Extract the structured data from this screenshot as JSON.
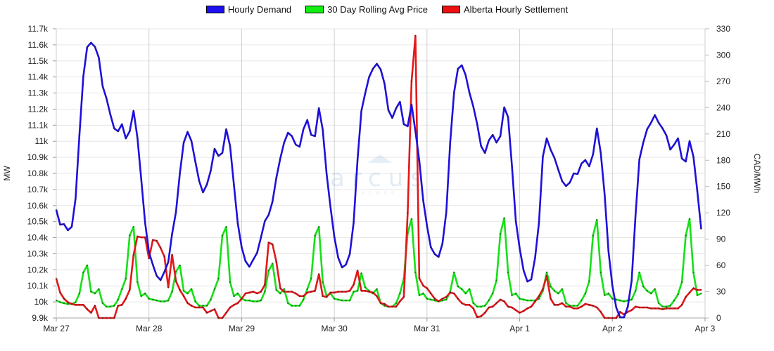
{
  "chart_data": {
    "type": "line",
    "title": "",
    "legend_position": "top-center",
    "grid": true,
    "x_tick_labels": [
      "Mar 27",
      "Mar 28",
      "Mar 29",
      "Mar 30",
      "Mar 31",
      "Apr 1",
      "Apr 2",
      "Apr 3"
    ],
    "x_unit": "hours since Mar 27 00:00",
    "y_left": {
      "label": "MW",
      "range": [
        9900,
        11700
      ],
      "step": 100,
      "tick_labels": [
        "9.9k",
        "10k",
        "10.1k",
        "10.2k",
        "10.3k",
        "10.4k",
        "10.5k",
        "10.6k",
        "10.7k",
        "10.8k",
        "10.9k",
        "11k",
        "11.1k",
        "11.2k",
        "11.3k",
        "11.4k",
        "11.5k",
        "11.6k",
        "11.7k"
      ]
    },
    "y_right": {
      "label": "CAD/MWh",
      "range": [
        0,
        330
      ],
      "step": 30,
      "tick_labels": [
        "0",
        "30",
        "60",
        "90",
        "120",
        "150",
        "180",
        "210",
        "240",
        "270",
        "300",
        "330"
      ]
    },
    "series": [
      {
        "name": "Hourly Demand",
        "axis": "left",
        "color": "#1e10dc",
        "values": [
          10573,
          10481,
          10484,
          10446,
          10468,
          10643,
          11040,
          11403,
          11586,
          11613,
          11588,
          11521,
          11342,
          11267,
          11167,
          11080,
          11062,
          11106,
          11018,
          11062,
          11189,
          11023,
          10765,
          10494,
          10310,
          10232,
          10162,
          10136,
          10188,
          10249,
          10424,
          10560,
          10800,
          10992,
          11058,
          11001,
          10874,
          10752,
          10682,
          10730,
          10817,
          10953,
          10909,
          10927,
          11075,
          10970,
          10726,
          10490,
          10341,
          10254,
          10219,
          10263,
          10306,
          10402,
          10503,
          10542,
          10625,
          10774,
          10892,
          10992,
          11053,
          11032,
          10979,
          10966,
          11075,
          11132,
          11040,
          11032,
          11206,
          11071,
          10796,
          10590,
          10407,
          10276,
          10215,
          10232,
          10298,
          10494,
          10883,
          11189,
          11298,
          11399,
          11451,
          11482,
          11447,
          11359,
          11193,
          11145,
          11206,
          11245,
          11106,
          11093,
          11228,
          11062,
          10879,
          10634,
          10472,
          10341,
          10298,
          10280,
          10363,
          10560,
          10992,
          11302,
          11451,
          11473,
          11412,
          11302,
          11215,
          11106,
          10970,
          10927,
          11005,
          11040,
          10992,
          11032,
          11211,
          11150,
          10844,
          10503,
          10332,
          10197,
          10127,
          10140,
          10276,
          10494,
          10905,
          11018,
          10948,
          10896,
          10822,
          10752,
          10721,
          10743,
          10800,
          10796,
          10861,
          10883,
          10844,
          10918,
          11080,
          10927,
          10669,
          10315,
          10101,
          9965,
          9904,
          9904,
          9970,
          10132,
          10538,
          10887,
          10992,
          11075,
          11115,
          11163,
          11115,
          11080,
          11036,
          10948,
          10979,
          11018,
          10892,
          10874,
          11001,
          10905,
          10690,
          10455
        ]
      },
      {
        "name": "30 Day Rolling Avg Price",
        "axis": "right",
        "color": "#17e017",
        "values": [
          20,
          18,
          17,
          16,
          16,
          18,
          28,
          52,
          60,
          30,
          28,
          33,
          17,
          13,
          13,
          14,
          21,
          33,
          45,
          94,
          104,
          41,
          25,
          28,
          22,
          21,
          20,
          19,
          19,
          20,
          30,
          53,
          60,
          31,
          28,
          33,
          19,
          14,
          14,
          14,
          21,
          33,
          45,
          94,
          104,
          41,
          25,
          28,
          22,
          20,
          20,
          19,
          19,
          20,
          30,
          54,
          62,
          32,
          28,
          33,
          17,
          14,
          14,
          14,
          21,
          33,
          45,
          94,
          104,
          41,
          25,
          28,
          22,
          21,
          20,
          20,
          20,
          30,
          31,
          51,
          35,
          31,
          28,
          33,
          17,
          14,
          13,
          13,
          17,
          28,
          45,
          97,
          113,
          52,
          26,
          28,
          22,
          21,
          20,
          19,
          20,
          21,
          30,
          52,
          36,
          33,
          28,
          33,
          17,
          13,
          13,
          14,
          20,
          28,
          43,
          96,
          114,
          52,
          26,
          28,
          22,
          21,
          20,
          20,
          20,
          22,
          31,
          52,
          36,
          31,
          28,
          33,
          17,
          14,
          14,
          14,
          20,
          28,
          42,
          94,
          112,
          52,
          26,
          28,
          22,
          21,
          20,
          19,
          20,
          21,
          31,
          52,
          36,
          31,
          28,
          33,
          17,
          13,
          13,
          14,
          20,
          27,
          41,
          94,
          113,
          52,
          26,
          28
        ]
      },
      {
        "name": "Alberta Hourly Settlement",
        "axis": "right",
        "color": "#e3181a",
        "values": [
          45,
          29,
          22,
          18,
          16,
          15,
          15,
          15,
          10,
          6,
          14,
          0,
          0,
          0,
          0,
          0,
          14,
          15,
          22,
          32,
          72,
          93,
          92,
          92,
          68,
          89,
          88,
          80,
          70,
          35,
          72,
          42,
          32,
          25,
          17,
          14,
          12,
          12,
          12,
          6,
          8,
          10,
          0,
          0,
          6,
          12,
          15,
          17,
          22,
          28,
          29,
          30,
          28,
          30,
          38,
          86,
          84,
          64,
          34,
          30,
          30,
          30,
          28,
          25,
          25,
          29,
          30,
          31,
          50,
          25,
          24,
          29,
          29,
          30,
          30,
          30,
          31,
          38,
          54,
          31,
          31,
          30,
          29,
          25,
          17,
          16,
          13,
          13,
          13,
          19,
          24,
          120,
          270,
          322,
          45,
          37,
          34,
          28,
          22,
          19,
          22,
          24,
          29,
          28,
          22,
          17,
          15,
          15,
          11,
          1,
          2,
          6,
          12,
          13,
          17,
          21,
          19,
          13,
          12,
          9,
          6,
          8,
          11,
          13,
          19,
          25,
          33,
          48,
          22,
          15,
          15,
          17,
          13,
          13,
          11,
          11,
          13,
          16,
          15,
          14,
          12,
          7,
          0,
          0,
          0,
          0,
          7,
          4,
          7,
          9,
          13,
          12,
          12,
          12,
          11,
          11,
          11,
          10,
          11,
          11,
          11,
          11,
          15,
          24,
          29,
          34,
          32,
          32
        ]
      }
    ],
    "watermark": {
      "text": "arcus",
      "subtext": "POWER"
    }
  }
}
